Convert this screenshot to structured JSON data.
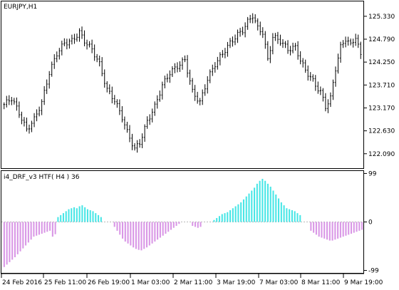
{
  "chart_data": [
    {
      "type": "ohlc",
      "title": "EURJPY,H1",
      "y_ticks": [
        "125.330",
        "124.790",
        "124.250",
        "123.710",
        "123.170",
        "122.630",
        "122.090"
      ],
      "y_tick_values": [
        125.33,
        124.79,
        124.25,
        123.71,
        123.17,
        122.63,
        122.09
      ],
      "ylim": [
        121.75,
        125.68
      ],
      "bar_color": "#000000",
      "close_path": [
        [
          0,
          123.25
        ],
        [
          3,
          123.4
        ],
        [
          6,
          123.05
        ],
        [
          9,
          122.65
        ],
        [
          12,
          122.9
        ],
        [
          15,
          123.3
        ],
        [
          18,
          124.0
        ],
        [
          21,
          124.45
        ],
        [
          24,
          124.7
        ],
        [
          27,
          124.75
        ],
        [
          30,
          124.95
        ],
        [
          32,
          124.75
        ],
        [
          35,
          124.55
        ],
        [
          38,
          124.2
        ],
        [
          41,
          123.6
        ],
        [
          44,
          123.35
        ],
        [
          47,
          122.95
        ],
        [
          49,
          122.6
        ],
        [
          52,
          122.2
        ],
        [
          54,
          122.35
        ],
        [
          57,
          122.85
        ],
        [
          60,
          123.2
        ],
        [
          63,
          123.7
        ],
        [
          66,
          124.0
        ],
        [
          69,
          124.15
        ],
        [
          72,
          124.3
        ],
        [
          75,
          123.55
        ],
        [
          78,
          123.3
        ],
        [
          81,
          123.85
        ],
        [
          84,
          124.2
        ],
        [
          87,
          124.45
        ],
        [
          90,
          124.7
        ],
        [
          93,
          124.9
        ],
        [
          95,
          125.0
        ],
        [
          97,
          125.2
        ],
        [
          99,
          125.35
        ],
        [
          101,
          125.05
        ],
        [
          103,
          124.95
        ],
        [
          105,
          124.3
        ],
        [
          107,
          124.85
        ],
        [
          110,
          124.75
        ],
        [
          113,
          124.55
        ],
        [
          116,
          124.6
        ],
        [
          118,
          124.3
        ],
        [
          120,
          124.05
        ],
        [
          122,
          123.9
        ],
        [
          124,
          123.7
        ],
        [
          126,
          123.55
        ],
        [
          128,
          123.2
        ],
        [
          130,
          123.4
        ],
        [
          132,
          124.1
        ],
        [
          134,
          124.6
        ],
        [
          136,
          124.8
        ],
        [
          138,
          124.65
        ],
        [
          140,
          124.85
        ],
        [
          142,
          124.4
        ]
      ]
    },
    {
      "type": "histogram",
      "title": "i4_DRF_v3 HTF( H4 ) 36",
      "y_ticks": [
        "99",
        "0",
        "-99"
      ],
      "y_tick_values": [
        99,
        0,
        -99
      ],
      "ylim": [
        -104,
        104
      ],
      "positive_color": "#48E6E6",
      "negative_color": "#D997E6",
      "zero_line_color": "#b8b8b8",
      "values": [
        -92,
        -87,
        -82,
        -77,
        -72,
        -66,
        -60,
        -54,
        -48,
        -42,
        -36,
        -30,
        -28,
        -26,
        -24,
        -22,
        -20,
        -18,
        -30,
        -25,
        10,
        14,
        18,
        22,
        26,
        28,
        30,
        28,
        32,
        34,
        30,
        26,
        24,
        22,
        18,
        14,
        10,
        0,
        0,
        0,
        0,
        -10,
        -18,
        -26,
        -34,
        -40,
        -44,
        -48,
        -52,
        -55,
        -57,
        -58,
        -55,
        -52,
        -48,
        -44,
        -40,
        -36,
        -32,
        -28,
        -24,
        -20,
        -16,
        -12,
        -8,
        -4,
        0,
        0,
        0,
        0,
        -8,
        -10,
        -12,
        -10,
        0,
        0,
        0,
        0,
        4,
        8,
        12,
        16,
        18,
        20,
        24,
        28,
        32,
        36,
        40,
        46,
        52,
        58,
        64,
        70,
        78,
        84,
        88,
        84,
        78,
        72,
        64,
        56,
        48,
        40,
        34,
        28,
        26,
        24,
        22,
        18,
        14,
        0,
        0,
        0,
        -18,
        -22,
        -26,
        -30,
        -32,
        -34,
        -36,
        -38,
        -38,
        -36,
        -34,
        -32,
        -30,
        -28,
        -26,
        -24,
        -22,
        -20,
        -18,
        -16
      ]
    }
  ],
  "x_axis": {
    "labels": [
      "24 Feb 2016",
      "25 Feb 11:00",
      "26 Feb 19:00",
      "1 Mar 03:00",
      "2 Mar 11:00",
      "3 Mar 19:00",
      "7 Mar 03:00",
      "8 Mar 11:00",
      "9 Mar 19:00"
    ]
  }
}
